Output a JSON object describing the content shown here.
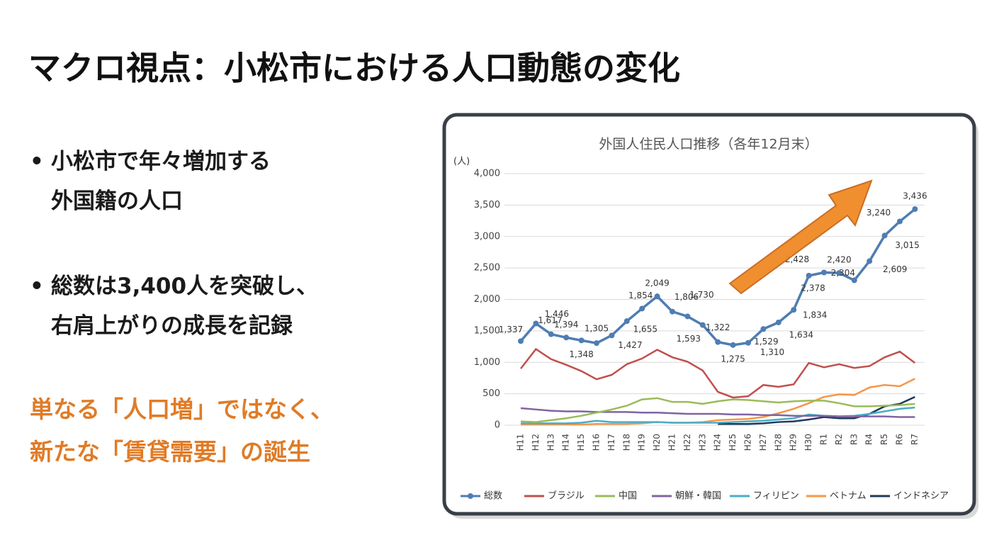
{
  "header": {
    "title": "マクロ視点：小松市における人口動態の変化"
  },
  "bullets": [
    {
      "lines": [
        "小松市で年々増加する",
        "外国籍の人口"
      ]
    },
    {
      "lines": [
        "総数は3,400人を突破し、",
        "右肩上がりの成長を記録"
      ]
    }
  ],
  "highlight": {
    "lines": [
      "単なる「人口増」ではなく、",
      "新たな「賃貸需要」の誕生"
    ]
  },
  "chart_data": {
    "type": "line",
    "title": "外国人住民人口推移（各年12月末）",
    "y_unit": "(人)",
    "categories": [
      "H11",
      "H12",
      "H13",
      "H14",
      "H15",
      "H16",
      "H17",
      "H18",
      "H19",
      "H20",
      "H21",
      "H22",
      "H23",
      "H24",
      "H25",
      "H26",
      "H27",
      "H28",
      "H29",
      "H30",
      "R1",
      "R2",
      "R3",
      "R4",
      "R5",
      "R6",
      "R7"
    ],
    "ylim": [
      0,
      4000
    ],
    "yticks": [
      0,
      500,
      {
        "value": 1000,
        "label": "1,000"
      },
      {
        "value": 1500,
        "label": "1,500"
      },
      {
        "value": 2000,
        "label": "2,000"
      },
      {
        "value": 2500,
        "label": "2,500"
      },
      {
        "value": 3000,
        "label": "3,000"
      },
      {
        "value": 3500,
        "label": "3,500"
      },
      {
        "value": 4000,
        "label": "4,000"
      }
    ],
    "grid": true,
    "series": [
      {
        "name": "総数",
        "color": "#4f7db3",
        "markers": true,
        "values": [
          1337,
          1617,
          1446,
          1394,
          1348,
          1305,
          1427,
          1655,
          1854,
          2049,
          1806,
          1730,
          1593,
          1322,
          1275,
          1310,
          1529,
          1634,
          1834,
          2378,
          2428,
          2420,
          2304,
          2609,
          3015,
          3240,
          3436
        ],
        "value_labels": [
          "1,337",
          "1,617",
          "1,446",
          "1,394",
          "1,348",
          "1,305",
          "1,427",
          "1,655",
          "1,854",
          "2,049",
          "1,806",
          "1,730",
          "1,593",
          "1,322",
          "1,275",
          "1,310",
          "1,529",
          "1,634",
          "1,834",
          "2,378",
          "2,428",
          "2,420",
          "2,304",
          "2,609",
          "3,015",
          "3,240",
          "3,436"
        ]
      },
      {
        "name": "ブラジル",
        "color": "#c0504d",
        "values": [
          900,
          1210,
          1050,
          960,
          860,
          730,
          800,
          970,
          1060,
          1200,
          1080,
          1010,
          870,
          530,
          440,
          460,
          640,
          610,
          650,
          990,
          920,
          970,
          910,
          940,
          1080,
          1170,
          990
        ]
      },
      {
        "name": "中国",
        "color": "#9bbb59",
        "values": [
          60,
          50,
          80,
          110,
          150,
          200,
          250,
          310,
          410,
          430,
          370,
          370,
          340,
          380,
          410,
          400,
          380,
          360,
          380,
          390,
          390,
          350,
          300,
          300,
          310,
          320,
          340
        ]
      },
      {
        "name": "朝鮮・韓国",
        "color": "#8064a2",
        "values": [
          270,
          250,
          230,
          220,
          220,
          210,
          210,
          210,
          200,
          200,
          190,
          180,
          180,
          180,
          170,
          170,
          160,
          160,
          150,
          150,
          150,
          140,
          140,
          140,
          140,
          130,
          130
        ]
      },
      {
        "name": "フィリピン",
        "color": "#4bacc6",
        "values": [
          30,
          30,
          30,
          30,
          40,
          70,
          50,
          50,
          50,
          50,
          40,
          40,
          40,
          40,
          50,
          60,
          70,
          90,
          110,
          170,
          150,
          140,
          150,
          180,
          220,
          260,
          280
        ]
      },
      {
        "name": "ベトナム",
        "color": "#f79646",
        "values": [
          10,
          10,
          10,
          10,
          10,
          20,
          20,
          20,
          30,
          50,
          40,
          40,
          50,
          80,
          90,
          100,
          130,
          190,
          260,
          350,
          450,
          490,
          480,
          600,
          640,
          620,
          740
        ]
      },
      {
        "name": "インドネシア",
        "color": "#1f3a5a",
        "values": [
          null,
          null,
          null,
          null,
          null,
          null,
          null,
          null,
          null,
          null,
          null,
          null,
          null,
          20,
          20,
          20,
          30,
          50,
          60,
          90,
          130,
          110,
          110,
          180,
          300,
          340,
          450
        ]
      }
    ]
  }
}
